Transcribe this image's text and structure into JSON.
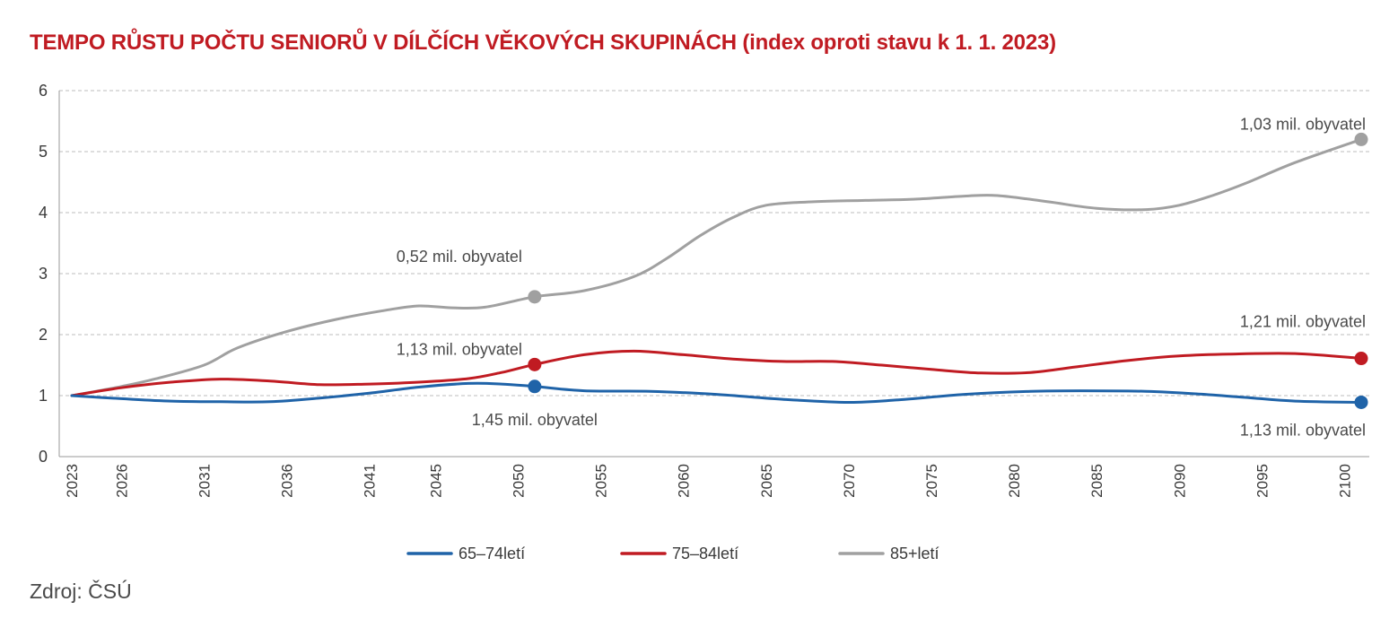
{
  "title": "TEMPO RŮSTU POČTU SENIORŮ V DÍLČÍCH VĚKOVÝCH SKUPINÁCH (index oproti stavu k 1. 1. 2023)",
  "source": "Zdroj: ČSÚ",
  "chart_data": {
    "type": "line",
    "title": "TEMPO RŮSTU POČTU SENIORŮ V DÍLČÍCH VĚKOVÝCH SKUPINÁCH (index oproti stavu k 1. 1. 2023)",
    "xlabel": "",
    "ylabel": "",
    "ylim": [
      0,
      6
    ],
    "yticks": [
      0,
      1,
      2,
      3,
      4,
      5,
      6
    ],
    "xlim": [
      2023,
      2101
    ],
    "xticks": [
      2023,
      2026,
      2031,
      2036,
      2041,
      2045,
      2050,
      2055,
      2060,
      2065,
      2070,
      2075,
      2080,
      2085,
      2090,
      2095,
      2100
    ],
    "grid": "horizontal-dashed",
    "legend": "bottom",
    "series": [
      {
        "name": "65–74letí",
        "color": "#1f63a8",
        "x": [
          2023,
          2026,
          2029,
          2032,
          2035,
          2038,
          2041,
          2044,
          2047,
          2049,
          2051,
          2054,
          2058,
          2062,
          2066,
          2070,
          2073,
          2077,
          2081,
          2084,
          2088,
          2091,
          2094,
          2097,
          2101
        ],
        "y": [
          1.0,
          0.95,
          0.91,
          0.9,
          0.9,
          0.96,
          1.04,
          1.14,
          1.2,
          1.19,
          1.15,
          1.08,
          1.07,
          1.02,
          0.94,
          0.89,
          0.93,
          1.02,
          1.07,
          1.08,
          1.07,
          1.03,
          0.97,
          0.91,
          0.89
        ]
      },
      {
        "name": "75–84letí",
        "color": "#c01b22",
        "x": [
          2023,
          2026,
          2029,
          2032,
          2035,
          2038,
          2041,
          2044,
          2047,
          2049,
          2051,
          2054,
          2057,
          2060,
          2063,
          2066,
          2069,
          2072,
          2075,
          2078,
          2081,
          2084,
          2087,
          2090,
          2093,
          2097,
          2101
        ],
        "y": [
          1.0,
          1.13,
          1.22,
          1.27,
          1.24,
          1.18,
          1.19,
          1.22,
          1.28,
          1.38,
          1.51,
          1.67,
          1.73,
          1.67,
          1.6,
          1.56,
          1.56,
          1.5,
          1.43,
          1.37,
          1.38,
          1.48,
          1.58,
          1.65,
          1.68,
          1.69,
          1.61
        ]
      },
      {
        "name": "85+letí",
        "color": "#a0a0a0",
        "x": [
          2023,
          2026,
          2028,
          2031,
          2033,
          2036,
          2039,
          2042,
          2044,
          2046,
          2048,
          2051,
          2054,
          2057,
          2059,
          2061,
          2063,
          2065,
          2068,
          2071,
          2074,
          2077,
          2079,
          2082,
          2085,
          2088,
          2090,
          2092,
          2094,
          2097,
          2101
        ],
        "y": [
          1.0,
          1.15,
          1.27,
          1.5,
          1.78,
          2.05,
          2.25,
          2.4,
          2.47,
          2.44,
          2.45,
          2.62,
          2.72,
          2.95,
          3.25,
          3.62,
          3.92,
          4.12,
          4.18,
          4.2,
          4.22,
          4.27,
          4.28,
          4.18,
          4.07,
          4.05,
          4.12,
          4.28,
          4.48,
          4.82,
          5.2
        ]
      }
    ],
    "markers": [
      {
        "series": "65–74letí",
        "x": 2051,
        "y": 1.15
      },
      {
        "series": "75–84letí",
        "x": 2051,
        "y": 1.51
      },
      {
        "series": "85+letí",
        "x": 2051,
        "y": 2.62
      },
      {
        "series": "65–74letí",
        "x": 2101,
        "y": 0.89
      },
      {
        "series": "75–84letí",
        "x": 2101,
        "y": 1.61
      },
      {
        "series": "85+letí",
        "x": 2101,
        "y": 5.2
      }
    ],
    "annotations": [
      {
        "text": "0,52 mil. obyvatel",
        "series": "85+letí",
        "x": 2051
      },
      {
        "text": "1,13 mil. obyvatel",
        "series": "75–84letí",
        "x": 2051
      },
      {
        "text": "1,45 mil. obyvatel",
        "series": "65–74letí",
        "x": 2051
      },
      {
        "text": "1,03 mil. obyvatel",
        "series": "85+letí",
        "x": 2101
      },
      {
        "text": "1,21 mil. obyvatel",
        "series": "75–84letí",
        "x": 2101
      },
      {
        "text": "1,13 mil.  obyvatel",
        "series": "65–74letí",
        "x": 2101
      }
    ]
  }
}
